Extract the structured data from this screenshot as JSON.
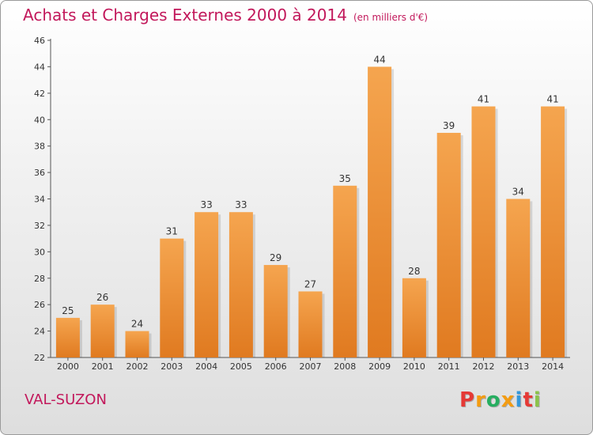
{
  "header": {
    "title": "Achats et Charges Externes 2000 à 2014",
    "unit": "(en milliers d'€)"
  },
  "footer": {
    "commune": "VAL-SUZON",
    "brand": "Proxiti"
  },
  "colors": {
    "title": "#c2185b",
    "bar_top": "#f5a54f",
    "bar_bottom": "#e07a20",
    "brand_letters": [
      "#e53935",
      "#f39c12",
      "#27ae60",
      "#f39c12",
      "#3498db",
      "#e53935",
      "#8bc34a"
    ]
  },
  "chart_data": {
    "type": "bar",
    "categories": [
      "2000",
      "2001",
      "2002",
      "2003",
      "2004",
      "2005",
      "2006",
      "2007",
      "2008",
      "2009",
      "2010",
      "2011",
      "2012",
      "2013",
      "2014"
    ],
    "values": [
      25,
      26,
      24,
      31,
      33,
      33,
      29,
      27,
      35,
      44,
      28,
      39,
      41,
      34,
      41
    ],
    "data_labels": [
      "25",
      "26",
      "24",
      "31",
      "33",
      "33",
      "29",
      "27",
      "35",
      "44",
      "28",
      "39",
      "41",
      "34",
      "41"
    ],
    "ylim": [
      22,
      46
    ],
    "yticks": [
      22,
      24,
      26,
      28,
      30,
      32,
      34,
      36,
      38,
      40,
      42,
      44,
      46
    ],
    "grid": false,
    "legend": "none"
  }
}
